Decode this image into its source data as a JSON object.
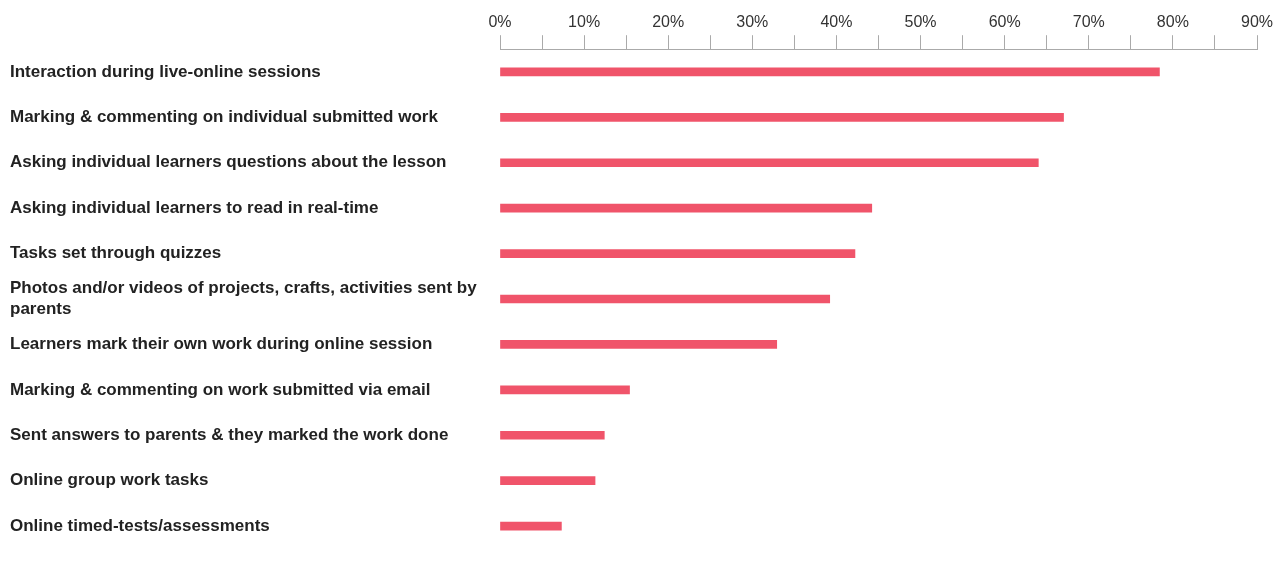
{
  "chart_data": {
    "type": "bar",
    "orientation": "horizontal",
    "categories": [
      "Interaction during live-online sessions",
      "Marking & commenting on individual submitted work",
      "Asking individual learners questions about the lesson",
      "Asking individual learners to read in real-time",
      "Tasks set through quizzes",
      "Photos and/or videos of projects, crafts, activities sent by parents",
      "Learners mark their own work during online session",
      "Marking & commenting on work submitted via email",
      "Sent answers to parents & they marked the work done",
      "Online group work tasks",
      "Online timed-tests/assessments"
    ],
    "values": [
      78.4,
      67,
      64,
      44.2,
      42.2,
      39.2,
      32.9,
      15.4,
      12.4,
      11.3,
      7.3
    ],
    "color": "#f0546a",
    "xlim": [
      0,
      90
    ],
    "xticks": [
      {
        "value": 0,
        "label": "0%"
      },
      {
        "value": 5,
        "label": null
      },
      {
        "value": 10,
        "label": "10%"
      },
      {
        "value": 15,
        "label": null
      },
      {
        "value": 20,
        "label": "20%"
      },
      {
        "value": 25,
        "label": null
      },
      {
        "value": 30,
        "label": "30%"
      },
      {
        "value": 35,
        "label": null
      },
      {
        "value": 40,
        "label": "40%"
      },
      {
        "value": 45,
        "label": null
      },
      {
        "value": 50,
        "label": "50%"
      },
      {
        "value": 55,
        "label": null
      },
      {
        "value": 60,
        "label": "60%"
      },
      {
        "value": 65,
        "label": null
      },
      {
        "value": 70,
        "label": "70%"
      },
      {
        "value": 75,
        "label": null
      },
      {
        "value": 80,
        "label": "80%"
      },
      {
        "value": 85,
        "label": null
      },
      {
        "value": 90,
        "label": "90%"
      }
    ],
    "grid": false,
    "legend": false
  }
}
